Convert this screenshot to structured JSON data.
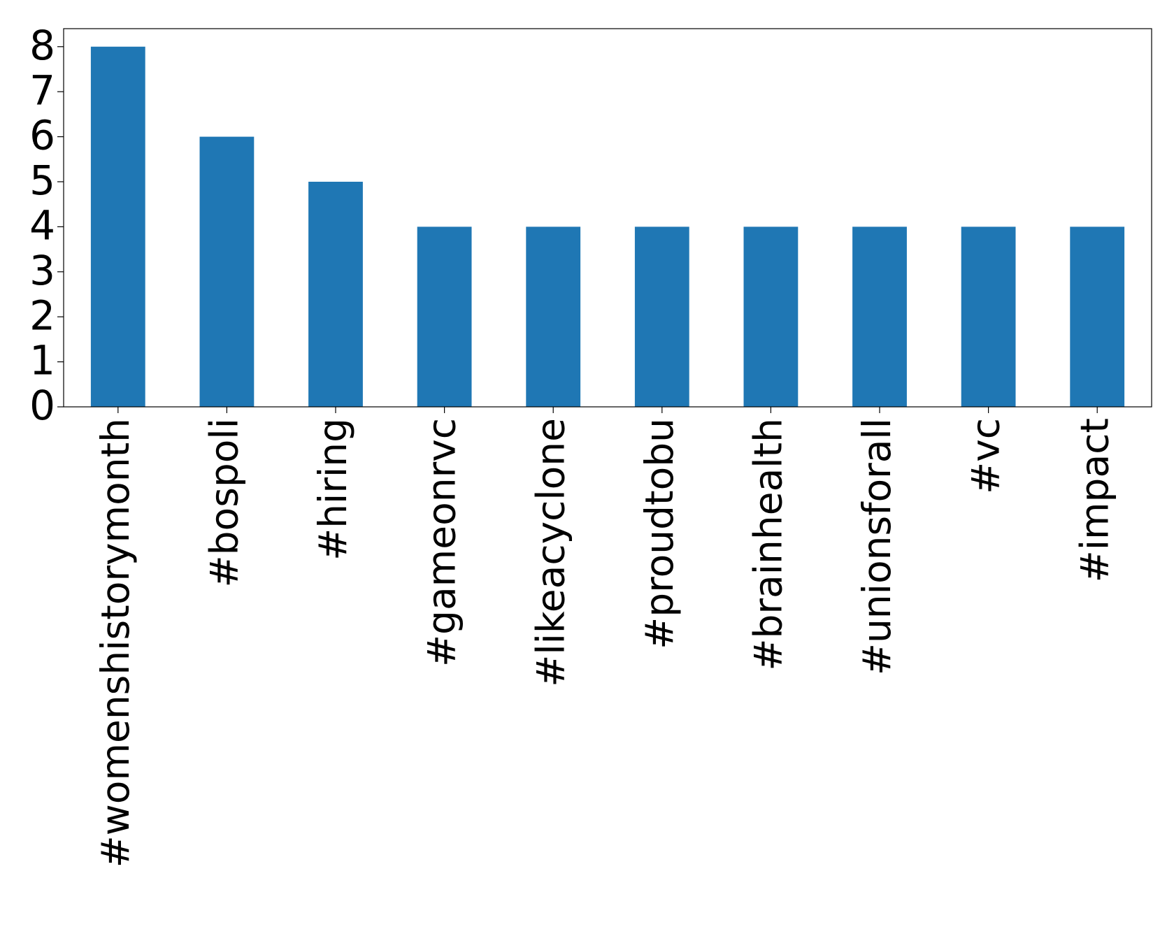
{
  "chart_data": {
    "type": "bar",
    "categories": [
      "#womenshistorymonth",
      "#bospoli",
      "#hiring",
      "#gameonrvc",
      "#likeacyclone",
      "#proudtobu",
      "#brainhealth",
      "#unionsforall",
      "#vc",
      "#impact"
    ],
    "values": [
      8,
      6,
      5,
      4,
      4,
      4,
      4,
      4,
      4,
      4
    ],
    "color": "#1f77b4",
    "ylim": [
      0,
      8.4
    ],
    "yticks": [
      0,
      1,
      2,
      3,
      4,
      5,
      6,
      7,
      8
    ],
    "grid": false
  }
}
